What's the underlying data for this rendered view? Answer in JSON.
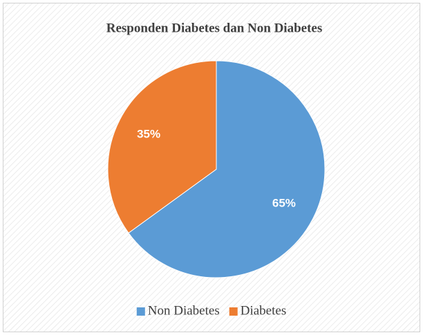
{
  "chart_data": {
    "type": "pie",
    "title": "Responden Diabetes dan Non Diabetes",
    "categories": [
      "Non Diabetes",
      "Diabetes"
    ],
    "values": [
      65,
      35
    ],
    "value_labels": [
      "65%",
      "35%"
    ],
    "colors": [
      "#5b9bd5",
      "#ed7d31"
    ],
    "legend": "bottom"
  }
}
